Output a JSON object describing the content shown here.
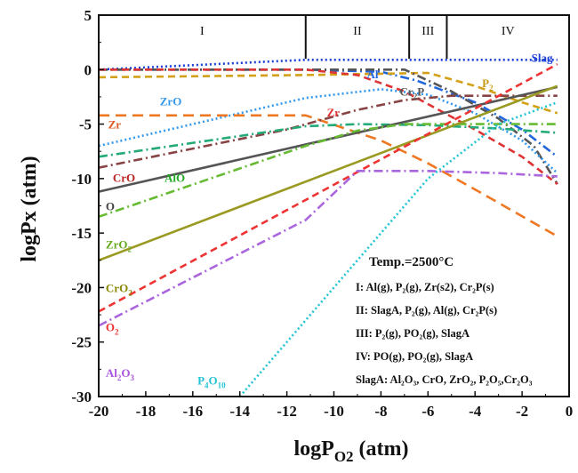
{
  "chart_data": {
    "type": "line",
    "title": "",
    "xlabel": "logP",
    "xlabel_sub": "O2",
    "xlabel_suffix": " (atm)",
    "ylabel": "logPx (atm)",
    "xlim": [
      -20,
      0
    ],
    "ylim": [
      -30,
      5
    ],
    "xticks": [
      -20,
      -18,
      -16,
      -14,
      -12,
      -10,
      -8,
      -6,
      -4,
      -2,
      0
    ],
    "yticks": [
      5,
      0,
      -5,
      -10,
      -15,
      -20,
      -25,
      -30
    ],
    "grid": false,
    "regions": [
      {
        "label": "I",
        "x_from": -20,
        "x_to": -11.2
      },
      {
        "label": "II",
        "x_from": -11.2,
        "x_to": -6.8
      },
      {
        "label": "III",
        "x_from": -6.8,
        "x_to": -5.2
      },
      {
        "label": "IV",
        "x_from": -5.2,
        "x_to": 0
      }
    ],
    "series": [
      {
        "name": "Slag",
        "color": "#1a3fd6",
        "dash": "dot",
        "x": [
          -20,
          -11.2,
          -0.5
        ],
        "y": [
          0,
          0.9,
          0.9
        ]
      },
      {
        "name": "Al",
        "color": "#2266dd",
        "dash": "dashdot",
        "x": [
          -20,
          -11.2,
          -8,
          -6.5,
          -4,
          -2,
          -0.5
        ],
        "y": [
          0,
          0,
          -0.2,
          -1,
          -3,
          -5.5,
          -8
        ]
      },
      {
        "name": "P2",
        "color": "#d4a017",
        "dash": "dash",
        "x": [
          -20,
          -11.2,
          -6,
          -4,
          -2,
          -0.5
        ],
        "y": [
          -0.7,
          -0.5,
          -0.3,
          -1.5,
          -3,
          -4
        ]
      },
      {
        "name": "Cr2P",
        "color": "#555555",
        "dash": "dashdot",
        "x": [
          -20,
          -11.2,
          -7,
          -5,
          -3,
          -1.5,
          -0.5
        ],
        "y": [
          0,
          0,
          0,
          -2,
          -4.5,
          -7,
          -10.5
        ]
      },
      {
        "name": "Zr",
        "color": "#dd3333",
        "dash": "dash",
        "x": [
          -20,
          -11.2,
          -9,
          -7,
          -4,
          -2,
          -0.5
        ],
        "y": [
          0,
          0,
          -0.5,
          -2,
          -5.5,
          -8,
          -10.5
        ]
      },
      {
        "name": "ZrO",
        "color": "#3399ee",
        "dash": "dot",
        "x": [
          -20,
          -11.2,
          -8,
          -6,
          -4,
          -2,
          -0.5
        ],
        "y": [
          -7,
          -2.6,
          -1.8,
          -2.3,
          -4,
          -6.5,
          -9.5
        ]
      },
      {
        "name": "Zr(dashed)",
        "color": "#ee7722",
        "dash": "longdash",
        "x": [
          -20,
          -11.2,
          -8,
          -6,
          -4,
          -0.5
        ],
        "y": [
          -4.2,
          -4.2,
          -6.5,
          -8.6,
          -11,
          -15.3
        ]
      },
      {
        "name": "CrO",
        "color": "#884444",
        "dash": "dashdot",
        "x": [
          -20,
          -12,
          -9,
          -7,
          -5,
          -3,
          -0.5
        ],
        "y": [
          -9,
          -5.5,
          -3.7,
          -2.8,
          -2.4,
          -2.4,
          -2.4
        ]
      },
      {
        "name": "AlO",
        "color": "#22aa77",
        "dash": "dashdot",
        "x": [
          -20,
          -11.2,
          -9,
          -6,
          -3,
          -0.5
        ],
        "y": [
          -8,
          -5.2,
          -5.0,
          -5.1,
          -5.4,
          -5.8
        ]
      },
      {
        "name": "O",
        "color": "#555555",
        "dash": "solid",
        "x": [
          -20,
          -0.5
        ],
        "y": [
          -11.2,
          -1.6
        ]
      },
      {
        "name": "ZrO2",
        "color": "#66bb33",
        "dash": "dashdot",
        "x": [
          -20,
          -11.2,
          -9,
          -7,
          -5,
          -2,
          -0.5
        ],
        "y": [
          -13.5,
          -7,
          -5.6,
          -5,
          -5,
          -5,
          -5
        ]
      },
      {
        "name": "CrO2",
        "color": "#9a9a22",
        "dash": "solid",
        "x": [
          -20,
          -0.5
        ],
        "y": [
          -17.5,
          -1.5
        ]
      },
      {
        "name": "O2",
        "color": "#ee3333",
        "dash": "dash",
        "x": [
          -20,
          -0.5
        ],
        "y": [
          -22.2,
          0.5
        ]
      },
      {
        "name": "Al2O3",
        "color": "#aa66dd",
        "dash": "dashdot",
        "x": [
          -20,
          -11.2,
          -9,
          -6,
          -3,
          -0.5
        ],
        "y": [
          -23.5,
          -13.8,
          -9.3,
          -9.3,
          -9.5,
          -9.8
        ]
      },
      {
        "name": "P4O10",
        "color": "#22c4d4",
        "dash": "dot",
        "x": [
          -14,
          -10,
          -6,
          -3,
          -0.5
        ],
        "y": [
          -30,
          -20,
          -10,
          -5,
          -3
        ]
      }
    ],
    "line_labels": [
      {
        "text": "Slag",
        "x": -1.6,
        "y": 0.7,
        "color": "#1a3fd6"
      },
      {
        "text": "Al",
        "x": -8.6,
        "y": -0.8,
        "color": "#2266dd"
      },
      {
        "text": "Cr",
        "sub": "2",
        "suffix": "P",
        "x": -7.2,
        "y": -2.4,
        "color": "#555555"
      },
      {
        "text": "P",
        "sub": "2",
        "suffix": "",
        "x": -3.7,
        "y": -1.6,
        "color": "#c49a10"
      },
      {
        "text": "Zr",
        "x": -10.3,
        "y": -4.3,
        "color": "#dd3333"
      },
      {
        "text": "ZrO",
        "x": -17.4,
        "y": -3.3,
        "color": "#3399ee"
      },
      {
        "text": "Zr",
        "x": -19.6,
        "y": -5.4,
        "color": "#dd5522"
      },
      {
        "text": "CrO",
        "x": -19.4,
        "y": -10.3,
        "color": "#bb2222"
      },
      {
        "text": "AlO",
        "x": -17.2,
        "y": -10.3,
        "color": "#22aa22"
      },
      {
        "text": "O",
        "x": -19.7,
        "y": -12.9,
        "color": "#444444"
      },
      {
        "text": "ZrO",
        "sub": "2",
        "suffix": "",
        "x": -19.7,
        "y": -16.4,
        "color": "#66aa22"
      },
      {
        "text": "CrO",
        "sub": "2",
        "suffix": "",
        "x": -19.7,
        "y": -20.4,
        "color": "#888800"
      },
      {
        "text": "O",
        "sub": "2",
        "suffix": "",
        "x": -19.7,
        "y": -24.0,
        "color": "#ee3333"
      },
      {
        "text": "Al",
        "sub": "2",
        "suffix": "O",
        "sub2": "3",
        "x": -19.7,
        "y": -28.2,
        "color": "#aa55dd"
      },
      {
        "text": "P",
        "sub": "4",
        "suffix": "O",
        "sub2": "10",
        "x": -15.8,
        "y": -35.2,
        "color": "#22c4d4"
      }
    ],
    "annotation": {
      "title": "Temp.=2500°C",
      "lines": [
        "I: Al(g), P₂(g), Zr(s2), Cr₂P(s)",
        "II: SlagA, P₂(g), Al(g), Cr₂P(s)",
        "III: P₂(g), PO₂(g), SlagA",
        "IV: PO(g), PO₂(g), SlagA",
        "SlagA: Al₂O₃, CrO, ZrO₂, P₂O₅,Cr₂O₃"
      ]
    }
  }
}
